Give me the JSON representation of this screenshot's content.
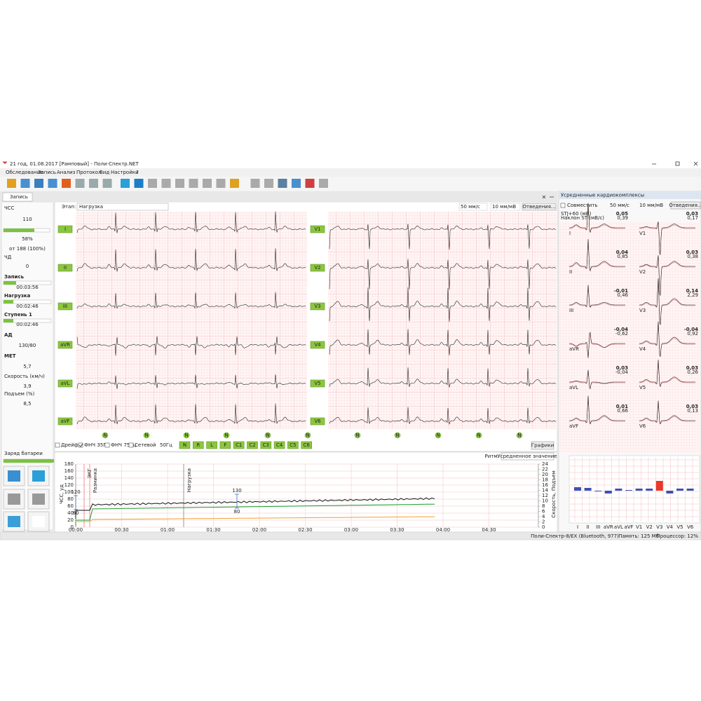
{
  "window": {
    "title": "21 год, 01.08.2017 [Рамповый] - Поли-Спектр.NET",
    "tab": "Запись"
  },
  "menu": [
    "Обследование",
    "Запись",
    "Анализ",
    "Протокол",
    "Вид",
    "Настройки",
    "?"
  ],
  "left_panel": {
    "hr_label": "ЧСС",
    "hr": "110",
    "hr_percent": "58%",
    "hr_max": "от 188 (100%)",
    "rr_label": "ЧД",
    "rr": "0",
    "record_label": "Запись",
    "record_time": "00:03:56",
    "load_label": "Нагрузка",
    "load_time": "00:02:46",
    "stage_label": "Ступень 1",
    "stage_time": "00:02:46",
    "bp_label": "АД",
    "bp": "130/80",
    "met_label": "МЕТ",
    "met": "5,7",
    "speed_label": "Скорость (км/ч)",
    "speed": "3,9",
    "incline_label": "Подъем (%)",
    "incline": "8,5",
    "battery_label": "Заряд батареи"
  },
  "ecg": {
    "stage_label": "Этап:",
    "stage": "Нагрузка",
    "speed": "50 мм/с",
    "gain": "10 мм/мВ",
    "leads_button": "Отведения...",
    "leads_left": [
      "I",
      "II",
      "III",
      "aVR",
      "aVL",
      "aVF"
    ],
    "leads_right": [
      "V1",
      "V2",
      "V3",
      "V4",
      "V5",
      "V6"
    ],
    "marker": "N",
    "filters": [
      "Дрейф",
      "ФНЧ 35Гц",
      "ФНЧ 75Гц",
      "Сетевой"
    ],
    "mains": "50Гц",
    "channels": [
      "N",
      "R",
      "L",
      "F",
      "C1",
      "C2",
      "C3",
      "C4",
      "C5",
      "C6"
    ],
    "graphs_button": "Графики"
  },
  "trend": {
    "rhythm_label": "Ритм:",
    "rhythm": "Усредненное значение",
    "y_label": "ЧСС, уд",
    "y2_label": "Скорость, Подъем",
    "yticks": [
      0,
      20,
      40,
      60,
      80,
      100,
      120,
      140,
      160,
      180
    ],
    "y2ticks": [
      0,
      2,
      4,
      6,
      8,
      10,
      12,
      14,
      16,
      18,
      20,
      22,
      24
    ],
    "xticks": [
      "00:00",
      "00:30",
      "01:00",
      "01:30",
      "02:00",
      "02:30",
      "03:00",
      "03:30",
      "04:00",
      "04:30"
    ],
    "events": [
      "ЭКГ",
      "Разминка",
      "Нагрузка"
    ],
    "bp": [
      {
        "sys": "120",
        "dia": "80"
      },
      {
        "sys": "130",
        "dia": "80"
      }
    ]
  },
  "averaged": {
    "title": "Усредненные кардиокомплексы",
    "combine": "Совместить",
    "speed": "50 мм/с",
    "gain": "10 мм/мВ",
    "leads_button": "Отведения...",
    "stj_label": "STJ+60 (мВ)",
    "slope_label": "Наклон ST (мВ/с)",
    "leads": [
      {
        "name": "I",
        "stj": "0,05",
        "slope": "0,39"
      },
      {
        "name": "II",
        "stj": "0,04",
        "slope": "0,85"
      },
      {
        "name": "III",
        "stj": "-0,01",
        "slope": "0,46"
      },
      {
        "name": "aVR",
        "stj": "-0,04",
        "slope": "-0,62"
      },
      {
        "name": "aVL",
        "stj": "0,03",
        "slope": "-0,04"
      },
      {
        "name": "aVF",
        "stj": "0,01",
        "slope": "0,66"
      },
      {
        "name": "V1",
        "stj": "0,03",
        "slope": "0,17"
      },
      {
        "name": "V2",
        "stj": "0,03",
        "slope": "0,38"
      },
      {
        "name": "V3",
        "stj": "0,14",
        "slope": "2,29"
      },
      {
        "name": "V4",
        "stj": "-0,04",
        "slope": "0,92"
      },
      {
        "name": "V5",
        "stj": "0,03",
        "slope": "0,26"
      },
      {
        "name": "V6",
        "stj": "0,03",
        "slope": "0,13"
      }
    ]
  },
  "st_chart": {
    "color": "#3f51b5",
    "alert_color": "#e8392b"
  },
  "status": {
    "device": "Поли-Спектр-8/ЕХ (Bluetooth, 977)",
    "memory": "Память: 125 Мб",
    "cpu": "Процессор: 12%"
  }
}
